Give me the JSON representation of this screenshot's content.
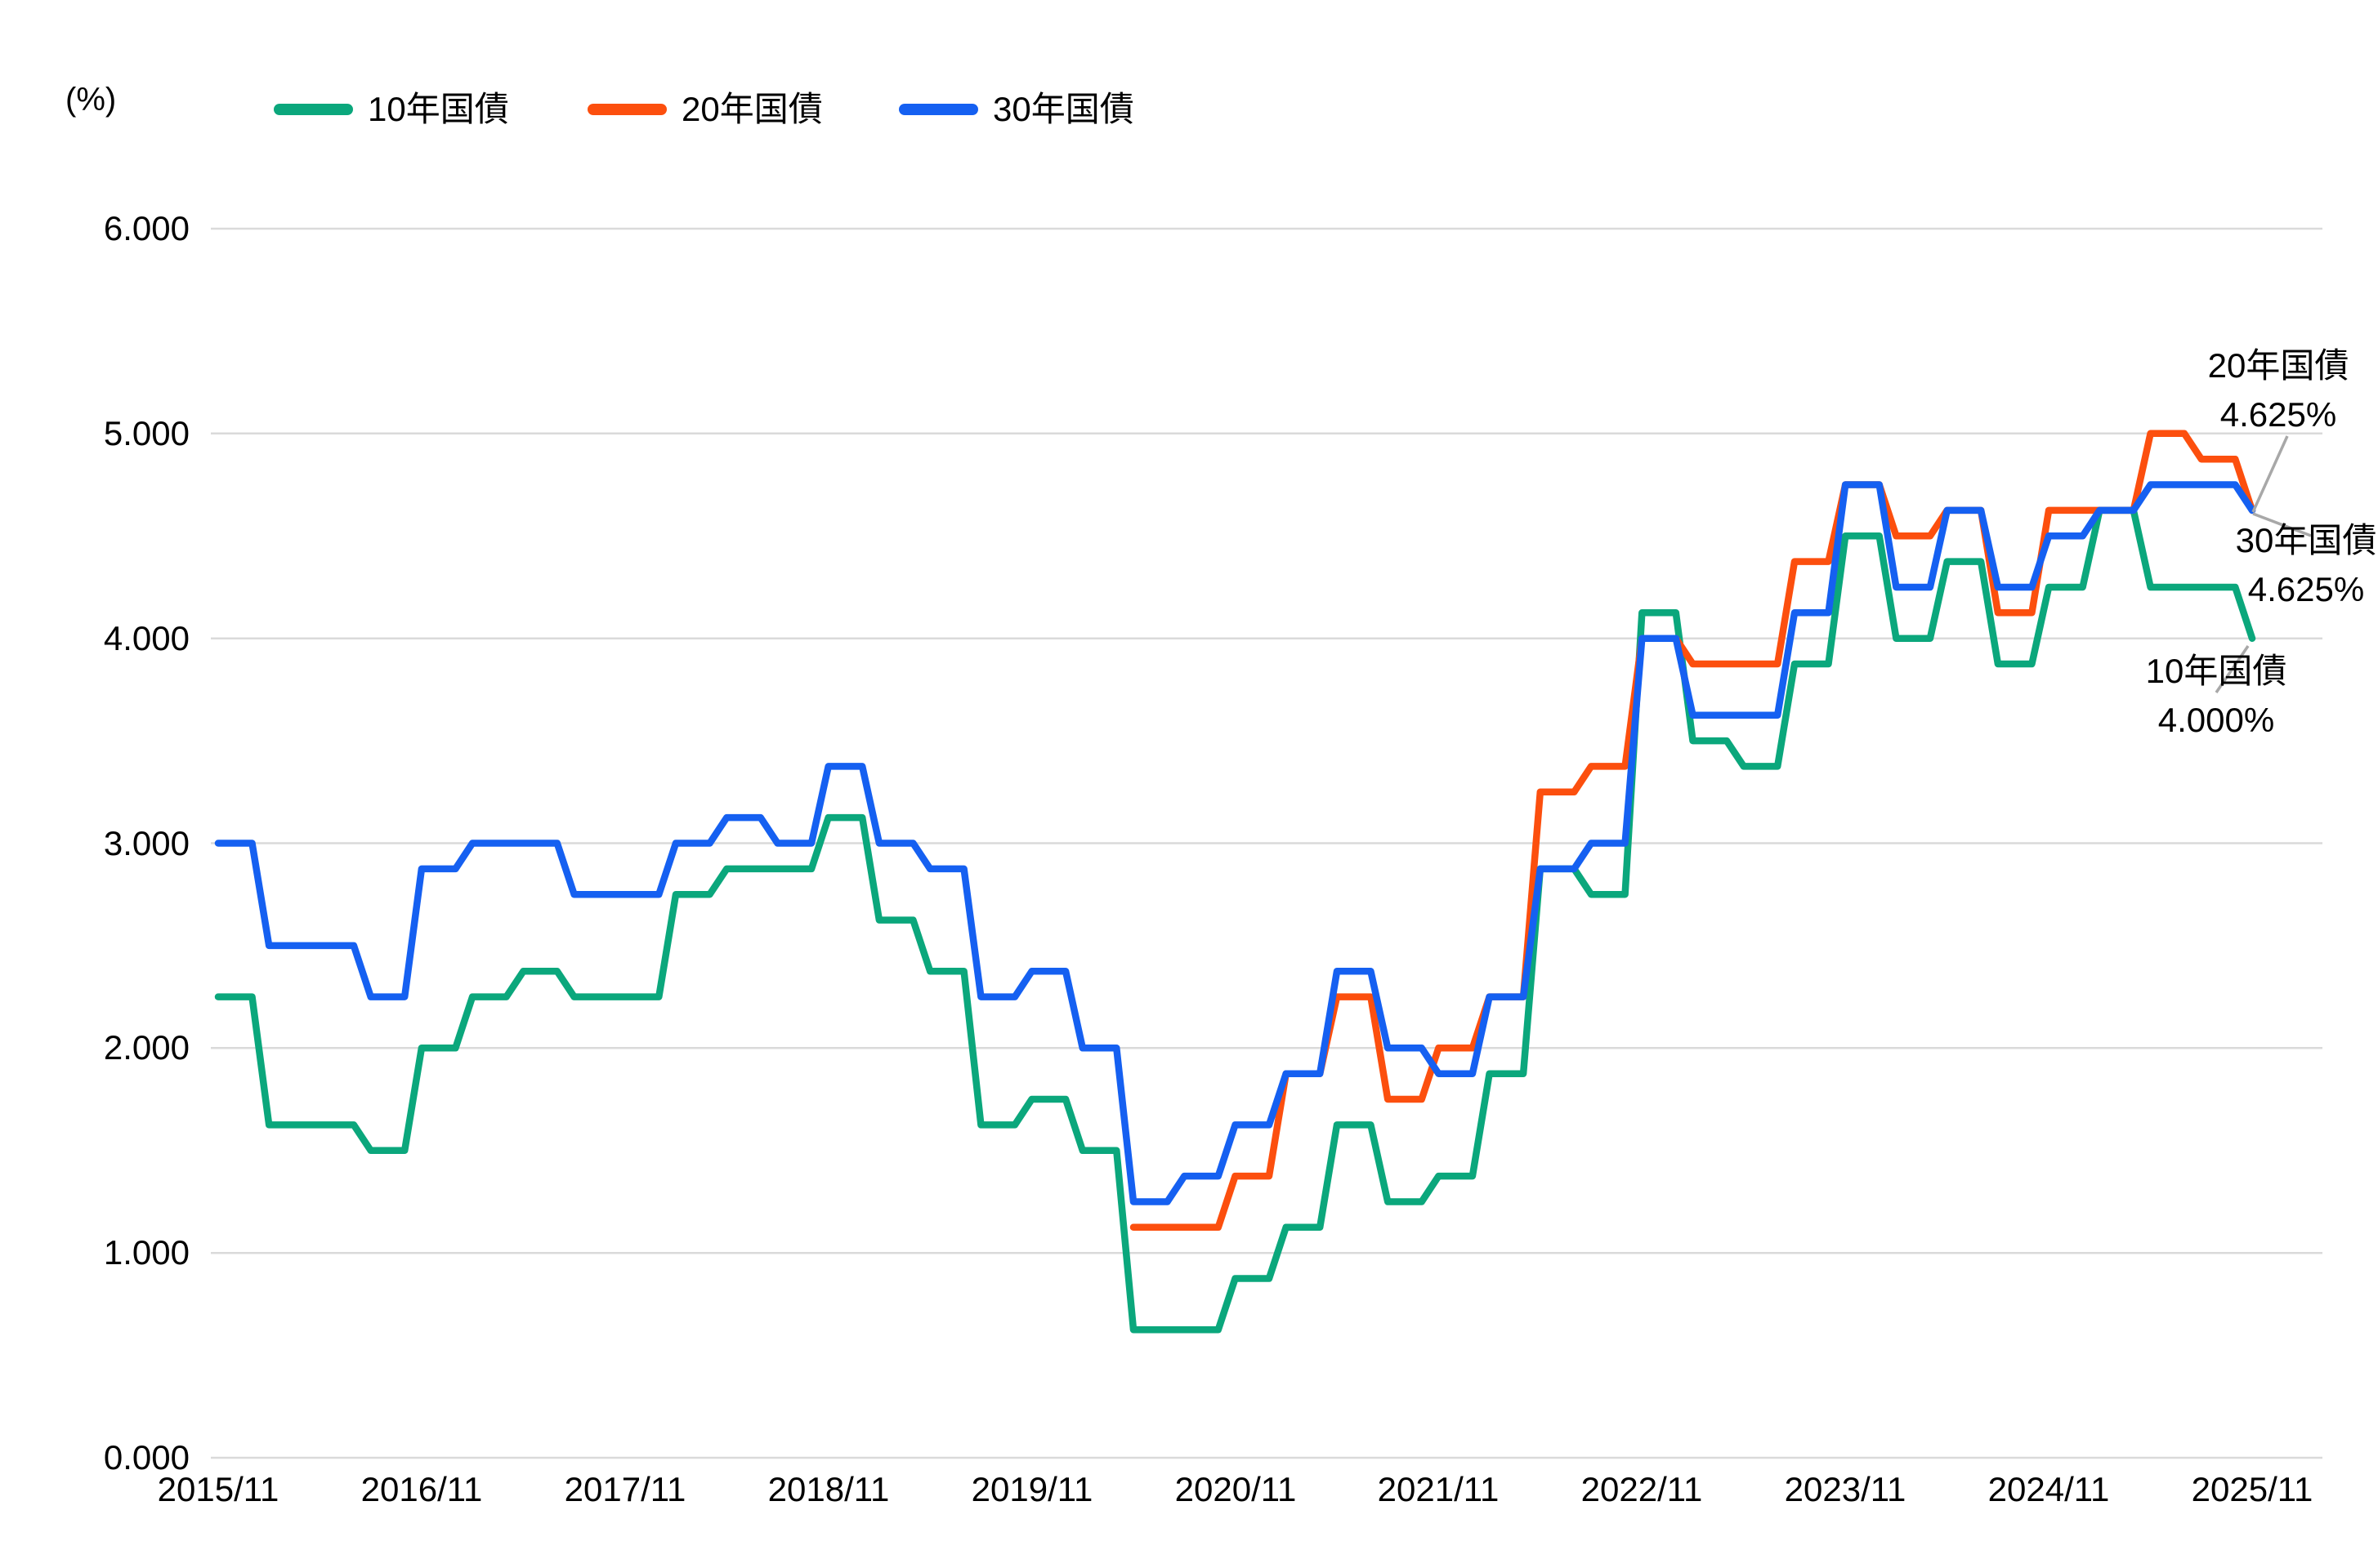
{
  "unit_label": "(%)",
  "legend": [
    {
      "label": "10年国債",
      "color": "#0BA77C"
    },
    {
      "label": "20年国債",
      "color": "#FC4F0E"
    },
    {
      "label": "30年国債",
      "color": "#1560F1"
    }
  ],
  "y_axis": {
    "ticks": [
      "6.000",
      "5.000",
      "4.000",
      "3.000",
      "2.000",
      "1.000",
      "0.000"
    ]
  },
  "x_axis": {
    "ticks": [
      "2015/11",
      "2016/11",
      "2017/11",
      "2018/11",
      "2019/11",
      "2020/11",
      "2021/11",
      "2022/11",
      "2023/11",
      "2024/11",
      "2025/11"
    ]
  },
  "annotations": [
    {
      "series": "20年国債",
      "value_label": "4.625%"
    },
    {
      "series": "30年国債",
      "value_label": "4.625%"
    },
    {
      "series": "10年国債",
      "value_label": "4.000%"
    }
  ],
  "chart_data": {
    "type": "line",
    "title": "",
    "xlabel": "",
    "ylabel": "(%)",
    "ylim": [
      0,
      6
    ],
    "grid": "horizontal",
    "legend_position": "top",
    "x_start": "2015/11",
    "x_end": "2025/11",
    "sampling": "monthly points; values step at quarterly refunding months (Feb/May/Aug/Nov), each quarterly value held for 3 months",
    "series": [
      {
        "id": "10y",
        "name": "10年国債",
        "color": "#0BA77C",
        "start": "2015/11",
        "start_month_index": 0,
        "end_value_label": "4.000%",
        "quarterly_values": [
          2.25,
          1.625,
          1.625,
          1.5,
          2.0,
          2.25,
          2.375,
          2.25,
          2.25,
          2.75,
          2.875,
          2.875,
          3.125,
          2.625,
          2.375,
          1.625,
          1.75,
          1.5,
          0.625,
          0.625,
          0.875,
          1.125,
          1.625,
          1.25,
          1.375,
          1.875,
          2.875,
          2.75,
          4.125,
          3.5,
          3.375,
          3.875,
          4.5,
          4.0,
          4.375,
          3.875,
          4.25,
          4.625,
          4.25,
          4.25,
          4.0
        ]
      },
      {
        "id": "20y",
        "name": "20年国債",
        "color": "#FC4F0E",
        "start": "2020/05",
        "start_month_index": 54,
        "end_value_label": "4.625%",
        "quarterly_values": [
          1.125,
          1.125,
          1.375,
          1.875,
          2.25,
          1.75,
          2.0,
          2.25,
          3.25,
          3.375,
          4.0,
          3.875,
          3.875,
          4.375,
          4.75,
          4.5,
          4.625,
          4.125,
          4.625,
          4.625,
          5.0,
          4.875,
          4.625
        ]
      },
      {
        "id": "30y",
        "name": "30年国債",
        "color": "#1560F1",
        "start": "2015/11",
        "start_month_index": 0,
        "end_value_label": "4.625%",
        "quarterly_values": [
          3.0,
          2.5,
          2.5,
          2.25,
          2.875,
          3.0,
          3.0,
          2.75,
          2.75,
          3.0,
          3.125,
          3.0,
          3.375,
          3.0,
          2.875,
          2.25,
          2.375,
          2.0,
          1.25,
          1.375,
          1.625,
          1.875,
          2.375,
          2.0,
          1.875,
          2.25,
          2.875,
          3.0,
          4.0,
          3.625,
          3.625,
          4.125,
          4.75,
          4.25,
          4.625,
          4.25,
          4.5,
          4.625,
          4.75,
          4.75,
          4.625
        ]
      }
    ]
  }
}
